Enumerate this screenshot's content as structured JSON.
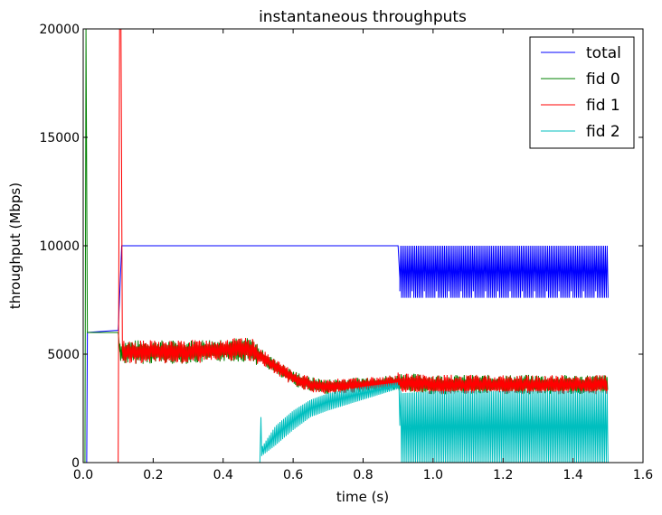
{
  "chart_data": {
    "type": "line",
    "title": "instantaneous throughputs",
    "xlabel": "time (s)",
    "ylabel": "throughput (Mbps)",
    "xlim": [
      0,
      1.6
    ],
    "ylim": [
      0,
      20000
    ],
    "xticks": [
      0.0,
      0.2,
      0.4,
      0.6,
      0.8,
      1.0,
      1.2,
      1.4,
      1.6
    ],
    "xtick_labels": [
      "0.0",
      "0.2",
      "0.4",
      "0.6",
      "0.8",
      "1.0",
      "1.2",
      "1.4",
      "1.6"
    ],
    "yticks": [
      0,
      5000,
      10000,
      15000,
      20000
    ],
    "ytick_labels": [
      "0",
      "5000",
      "10000",
      "15000",
      "20000"
    ],
    "grid": false,
    "legend": "top-right",
    "series": [
      {
        "name": "total",
        "color": "#0000ff",
        "x": [
          0.0,
          0.01,
          0.012,
          0.1,
          0.105,
          0.11,
          0.9,
          0.905,
          1.0,
          1.1,
          1.2,
          1.3,
          1.4,
          1.5
        ],
        "y": [
          0,
          0,
          6000,
          6100,
          8000,
          10000,
          10000,
          8500,
          8300,
          8200,
          8000,
          8000,
          8000,
          8000
        ],
        "low_envelope": [
          7600,
          7900,
          7700,
          7600,
          7600,
          7600,
          7600,
          7600,
          7600,
          7600,
          7600,
          7600,
          7600,
          7600
        ],
        "high_envelope": [
          10000,
          10000,
          10000,
          10000,
          10000,
          10000,
          10000,
          10000,
          10000,
          10000,
          10000,
          10000,
          10000,
          10000
        ]
      },
      {
        "name": "fid 0",
        "color": "#008000",
        "x": [
          0.0,
          0.005,
          0.008,
          0.012,
          0.1,
          0.105,
          0.2,
          0.3,
          0.4,
          0.48,
          0.5,
          0.55,
          0.6,
          0.65,
          0.7,
          0.8,
          0.9,
          1.0,
          1.2,
          1.4,
          1.5
        ],
        "y": [
          0,
          0,
          20000,
          6000,
          6000,
          5100,
          5100,
          5100,
          5200,
          5200,
          5000,
          4400,
          3900,
          3600,
          3500,
          3600,
          3700,
          3600,
          3600,
          3600,
          3600
        ]
      },
      {
        "name": "fid 1",
        "color": "#ff0000",
        "x": [
          0.0,
          0.1,
          0.104,
          0.108,
          0.112,
          0.2,
          0.3,
          0.4,
          0.48,
          0.5,
          0.55,
          0.6,
          0.65,
          0.7,
          0.8,
          0.9,
          1.0,
          1.2,
          1.4,
          1.5
        ],
        "y": [
          0,
          0,
          20000,
          20000,
          5100,
          5100,
          5100,
          5200,
          5200,
          5000,
          4400,
          3900,
          3600,
          3500,
          3600,
          3700,
          3600,
          3600,
          3600,
          3600
        ]
      },
      {
        "name": "fid 2",
        "color": "#00bfbf",
        "x": [
          0.0,
          0.505,
          0.508,
          0.51,
          0.55,
          0.6,
          0.65,
          0.7,
          0.8,
          0.9,
          0.91,
          1.0,
          1.2,
          1.4,
          1.5
        ],
        "y": [
          0,
          0,
          2100,
          500,
          1400,
          2200,
          2700,
          3000,
          3400,
          3700,
          3100,
          1500,
          1500,
          1500,
          1500
        ],
        "low_envelope": [
          0,
          0,
          0,
          300,
          800,
          1500,
          2100,
          2400,
          2900,
          3400,
          0,
          0,
          0,
          0,
          0
        ],
        "high_envelope": [
          0,
          0,
          2100,
          700,
          1700,
          2400,
          2900,
          3200,
          3500,
          3700,
          3200,
          3300,
          3300,
          3300,
          3300
        ]
      }
    ]
  }
}
